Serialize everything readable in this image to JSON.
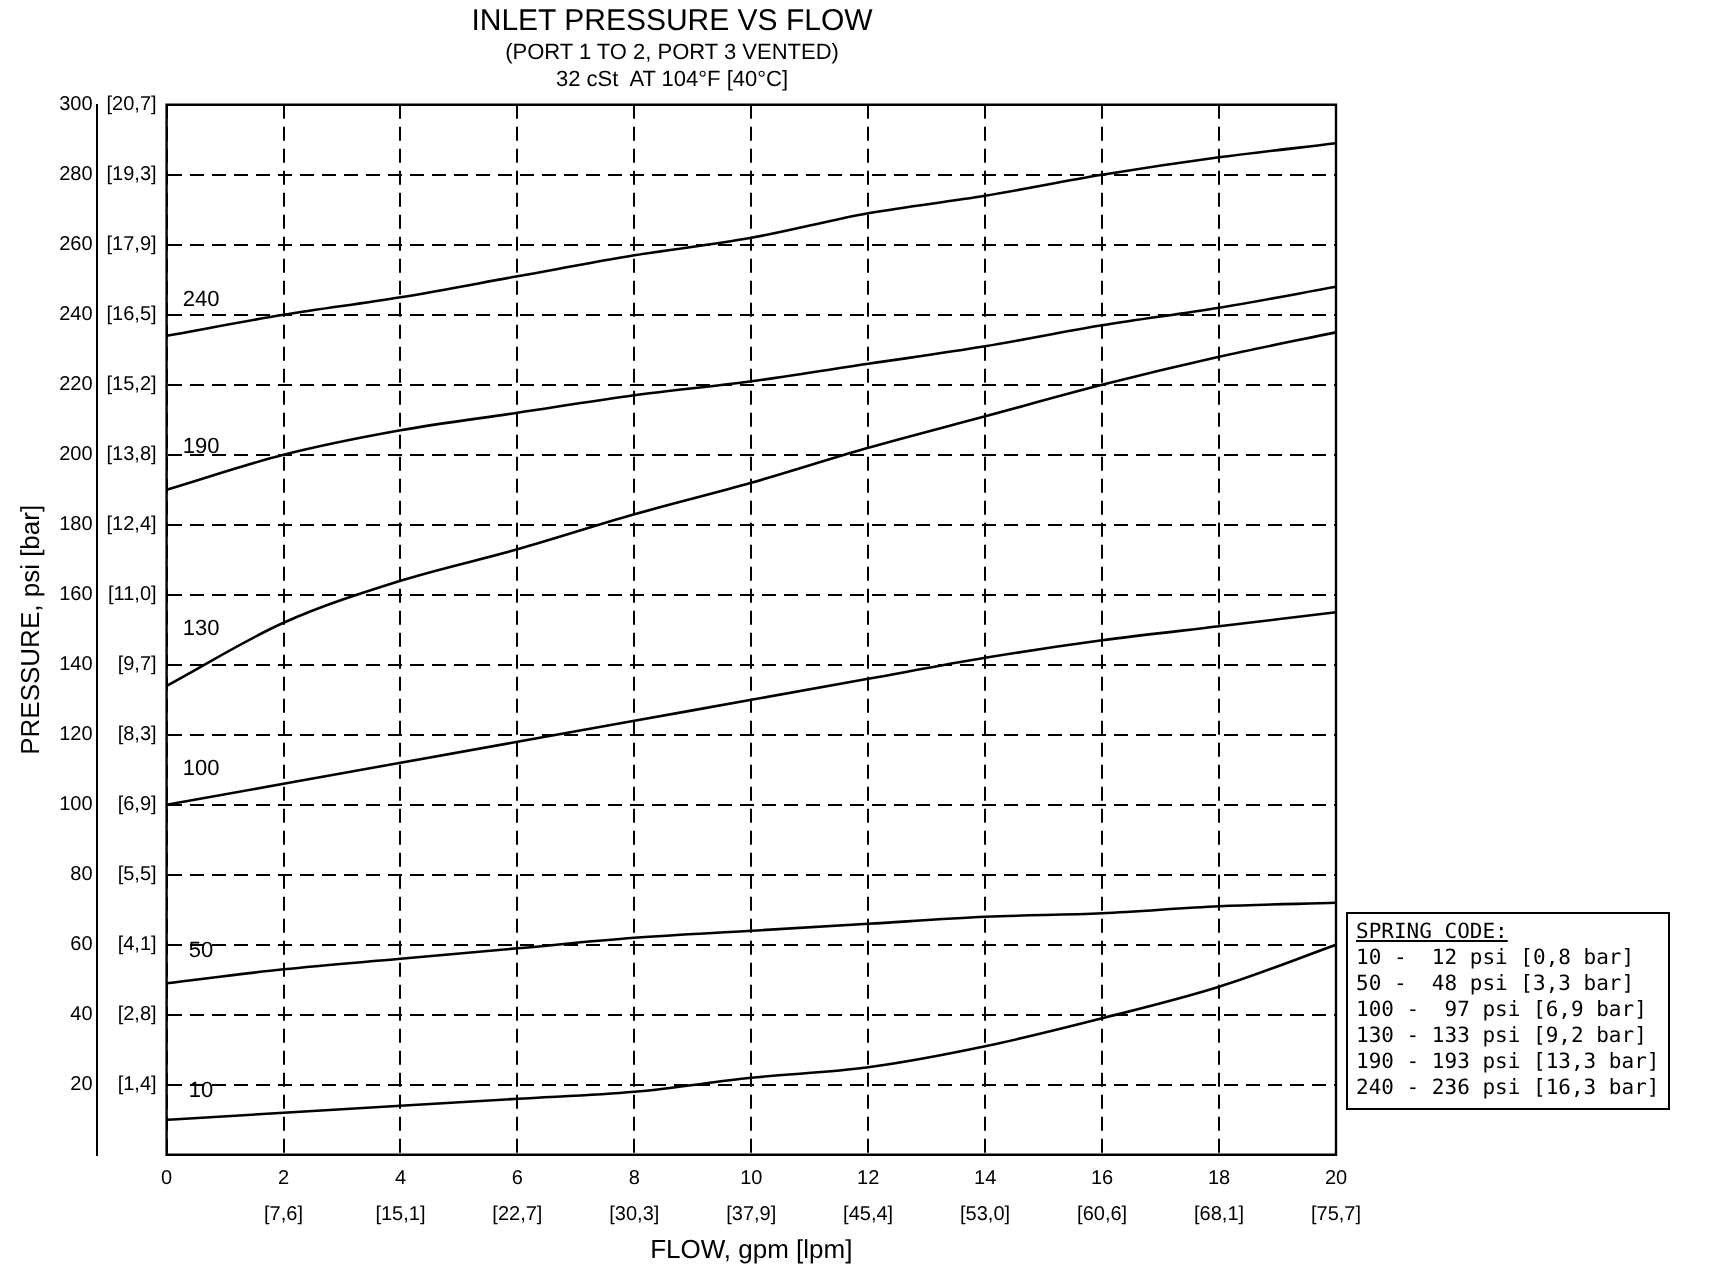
{
  "chart_data": {
    "type": "line",
    "title": "INLET PRESSURE VS FLOW",
    "subtitle": "(PORT 1 TO 2, PORT 3 VENTED)\n32 cSt  AT 104°F [40°C]",
    "xlabel": "FLOW, gpm [lpm]",
    "ylabel": "PRESSURE, psi [bar]",
    "x": [
      0,
      2,
      4,
      6,
      8,
      10,
      12,
      14,
      16,
      18,
      20
    ],
    "series": [
      {
        "name": "240",
        "color": "#000000",
        "values": [
          234,
          240,
          245,
          251,
          257,
          262,
          269,
          274,
          280,
          285,
          289
        ]
      },
      {
        "name": "190",
        "color": "#000000",
        "values": [
          190,
          200,
          207,
          212,
          217,
          221,
          226,
          231,
          237,
          242,
          248
        ]
      },
      {
        "name": "130",
        "color": "#000000",
        "values": [
          134,
          152,
          164,
          173,
          183,
          192,
          202,
          211,
          220,
          228,
          235
        ]
      },
      {
        "name": "100",
        "color": "#000000",
        "values": [
          100,
          106,
          112,
          118,
          124,
          130,
          136,
          142,
          147,
          151,
          155
        ]
      },
      {
        "name": "50",
        "color": "#000000",
        "values": [
          49,
          53,
          56,
          59,
          62,
          64,
          66,
          68,
          69,
          71,
          72
        ]
      },
      {
        "name": "10",
        "color": "#000000",
        "values": [
          10,
          12,
          14,
          16,
          18,
          22,
          25,
          31,
          39,
          48,
          60
        ]
      }
    ],
    "xlim": [
      0,
      20
    ],
    "xticks": [
      0,
      2,
      4,
      6,
      8,
      10,
      12,
      14,
      16,
      18,
      20
    ],
    "x2lim": [
      0,
      75.71
    ],
    "x2ticks": [
      {
        "value": 7.57,
        "label": "[7,6]"
      },
      {
        "value": 15.14,
        "label": "[15,1]"
      },
      {
        "value": 22.71,
        "label": "[22,7]"
      },
      {
        "value": 30.28,
        "label": "[30,3]"
      },
      {
        "value": 37.85,
        "label": "[37,9]"
      },
      {
        "value": 45.42,
        "label": "[45,4]"
      },
      {
        "value": 52.99,
        "label": "[53,0]"
      },
      {
        "value": 60.57,
        "label": "[60,6]"
      },
      {
        "value": 68.14,
        "label": "[68,1]"
      },
      {
        "value": 75.71,
        "label": "[75,7]"
      }
    ],
    "ylim": [
      0,
      300
    ],
    "yticks": [
      20,
      40,
      60,
      80,
      100,
      120,
      140,
      160,
      180,
      200,
      220,
      240,
      260,
      280,
      300
    ],
    "y2lim": [
      0,
      20.68
    ],
    "y2ticks": [
      {
        "value": 1.379,
        "label": "[1,4]"
      },
      {
        "value": 2.758,
        "label": "[2,8]"
      },
      {
        "value": 4.137,
        "label": "[4,1]"
      },
      {
        "value": 5.516,
        "label": "[5,5]"
      },
      {
        "value": 6.895,
        "label": "[6,9]"
      },
      {
        "value": 8.274,
        "label": "[8,3]"
      },
      {
        "value": 9.653,
        "label": "[9,7]"
      },
      {
        "value": 11.03,
        "label": "[11,0]"
      },
      {
        "value": 12.41,
        "label": "[12,4]"
      },
      {
        "value": 13.79,
        "label": "[13,8]"
      },
      {
        "value": 15.17,
        "label": "[15,2]"
      },
      {
        "value": 16.55,
        "label": "[16,5]"
      },
      {
        "value": 17.93,
        "label": "[17,9]"
      },
      {
        "value": 19.31,
        "label": "[19,3]"
      },
      {
        "value": 20.68,
        "label": "[20,7]"
      }
    ],
    "grid": true,
    "marker": "none",
    "line_style": "solid",
    "legend": false,
    "annotations": [
      "SPRING CODE:",
      "10 -  12 psi [0,8 bar]",
      "50 -  48 psi [3,3 bar]",
      "100 -  97 psi [6,9 bar]",
      "130 - 133 psi [9,2 bar]",
      "190 - 193 psi [13,3 bar]",
      "240 - 236 psi [16,3 bar]"
    ]
  }
}
